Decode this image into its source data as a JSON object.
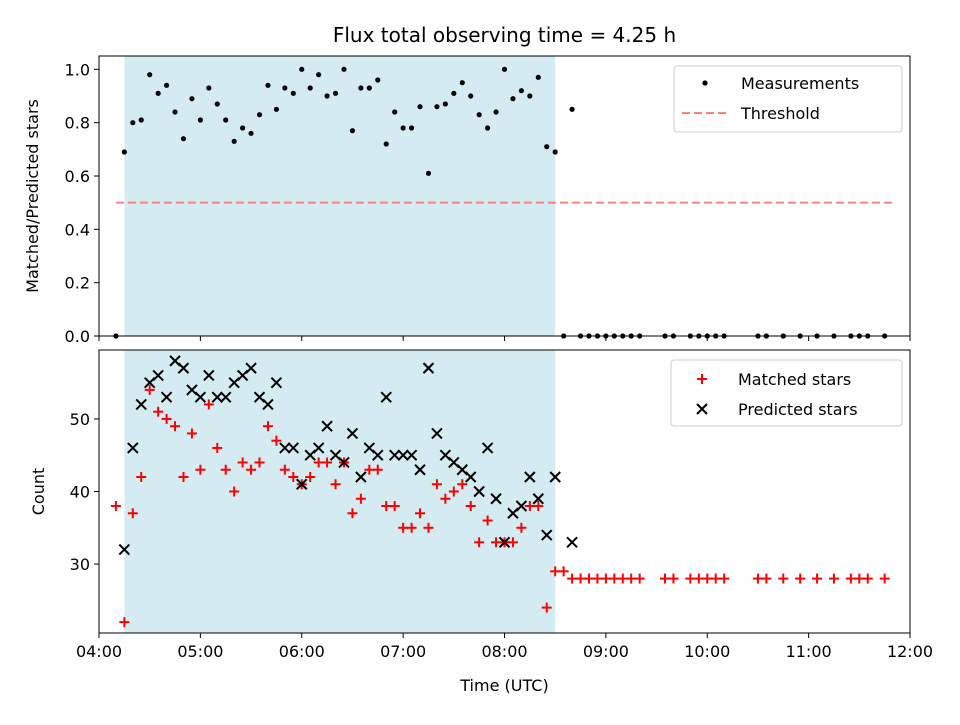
{
  "chart_data": [
    {
      "type": "scatter",
      "title": "Flux total observing time = 4.25 h",
      "xlabel": "",
      "ylabel": "Matched/Predicted stars",
      "xlim": [
        "04:00",
        "12:00"
      ],
      "ylim": [
        0,
        1.05
      ],
      "yticks": [
        "0.0",
        "0.2",
        "0.4",
        "0.6",
        "0.8",
        "1.0"
      ],
      "grid": false,
      "legend_position": "top-right",
      "shaded_span": {
        "start": "04:15",
        "end": "08:30",
        "color": "#add8e6"
      },
      "series": [
        {
          "name": "Measurements",
          "marker": "dot",
          "color": "#000000",
          "points": [
            [
              "04:10",
              0.0
            ],
            [
              "04:15",
              0.69
            ],
            [
              "04:20",
              0.8
            ],
            [
              "04:25",
              0.81
            ],
            [
              "04:30",
              0.98
            ],
            [
              "04:35",
              0.91
            ],
            [
              "04:40",
              0.94
            ],
            [
              "04:45",
              0.84
            ],
            [
              "04:50",
              0.74
            ],
            [
              "04:55",
              0.89
            ],
            [
              "05:00",
              0.81
            ],
            [
              "05:05",
              0.93
            ],
            [
              "05:10",
              0.87
            ],
            [
              "05:15",
              0.81
            ],
            [
              "05:20",
              0.73
            ],
            [
              "05:25",
              0.78
            ],
            [
              "05:30",
              0.76
            ],
            [
              "05:35",
              0.83
            ],
            [
              "05:40",
              0.94
            ],
            [
              "05:45",
              0.85
            ],
            [
              "05:50",
              0.93
            ],
            [
              "05:55",
              0.91
            ],
            [
              "06:00",
              1.0
            ],
            [
              "06:05",
              0.93
            ],
            [
              "06:10",
              0.98
            ],
            [
              "06:15",
              0.9
            ],
            [
              "06:20",
              0.91
            ],
            [
              "06:25",
              1.0
            ],
            [
              "06:30",
              0.77
            ],
            [
              "06:35",
              0.93
            ],
            [
              "06:40",
              0.93
            ],
            [
              "06:45",
              0.96
            ],
            [
              "06:50",
              0.72
            ],
            [
              "06:55",
              0.84
            ],
            [
              "07:00",
              0.78
            ],
            [
              "07:05",
              0.78
            ],
            [
              "07:10",
              0.86
            ],
            [
              "07:15",
              0.61
            ],
            [
              "07:20",
              0.86
            ],
            [
              "07:25",
              0.87
            ],
            [
              "07:30",
              0.91
            ],
            [
              "07:35",
              0.95
            ],
            [
              "07:40",
              0.9
            ],
            [
              "07:45",
              0.83
            ],
            [
              "07:50",
              0.78
            ],
            [
              "07:55",
              0.84
            ],
            [
              "08:00",
              1.0
            ],
            [
              "08:05",
              0.89
            ],
            [
              "08:10",
              0.92
            ],
            [
              "08:15",
              0.9
            ],
            [
              "08:20",
              0.97
            ],
            [
              "08:25",
              0.71
            ],
            [
              "08:30",
              0.69
            ],
            [
              "08:35",
              0.0
            ],
            [
              "08:40",
              0.85
            ],
            [
              "08:45",
              0.0
            ],
            [
              "08:50",
              0.0
            ],
            [
              "08:55",
              0.0
            ],
            [
              "09:00",
              0.0
            ],
            [
              "09:05",
              0.0
            ],
            [
              "09:10",
              0.0
            ],
            [
              "09:15",
              0.0
            ],
            [
              "09:20",
              0.0
            ],
            [
              "09:35",
              0.0
            ],
            [
              "09:40",
              0.0
            ],
            [
              "09:50",
              0.0
            ],
            [
              "09:55",
              0.0
            ],
            [
              "10:00",
              0.0
            ],
            [
              "10:05",
              0.0
            ],
            [
              "10:10",
              0.0
            ],
            [
              "10:30",
              0.0
            ],
            [
              "10:35",
              0.0
            ],
            [
              "10:45",
              0.0
            ],
            [
              "10:55",
              0.0
            ],
            [
              "11:05",
              0.0
            ],
            [
              "11:15",
              0.0
            ],
            [
              "11:25",
              0.0
            ],
            [
              "11:30",
              0.0
            ],
            [
              "11:35",
              0.0
            ],
            [
              "11:45",
              0.0
            ]
          ]
        },
        {
          "name": "Threshold",
          "marker": "dashed-line",
          "color": "#ff7f7f",
          "points": [
            [
              "04:10",
              0.5
            ],
            [
              "11:50",
              0.5
            ]
          ]
        }
      ]
    },
    {
      "type": "scatter",
      "title": "",
      "xlabel": "Time (UTC)",
      "ylabel": "Count",
      "xlim": [
        "04:00",
        "12:00"
      ],
      "xticks": [
        "04:00",
        "05:00",
        "06:00",
        "07:00",
        "08:00",
        "09:00",
        "10:00",
        "11:00",
        "12:00"
      ],
      "ylim": [
        20.5,
        59.5
      ],
      "yticks": [
        "30",
        "40",
        "50"
      ],
      "grid": false,
      "legend_position": "top-right",
      "shaded_span": {
        "start": "04:15",
        "end": "08:30",
        "color": "#add8e6"
      },
      "series": [
        {
          "name": "Matched stars",
          "marker": "plus",
          "color": "#ff0000",
          "points": [
            [
              "04:10",
              38
            ],
            [
              "04:15",
              22
            ],
            [
              "04:20",
              37
            ],
            [
              "04:25",
              42
            ],
            [
              "04:30",
              54
            ],
            [
              "04:35",
              51
            ],
            [
              "04:40",
              50
            ],
            [
              "04:45",
              49
            ],
            [
              "04:50",
              42
            ],
            [
              "04:55",
              48
            ],
            [
              "05:00",
              43
            ],
            [
              "05:05",
              52
            ],
            [
              "05:10",
              46
            ],
            [
              "05:15",
              43
            ],
            [
              "05:20",
              40
            ],
            [
              "05:25",
              44
            ],
            [
              "05:30",
              43
            ],
            [
              "05:35",
              44
            ],
            [
              "05:40",
              49
            ],
            [
              "05:45",
              47
            ],
            [
              "05:50",
              43
            ],
            [
              "05:55",
              42
            ],
            [
              "06:00",
              41
            ],
            [
              "06:05",
              42
            ],
            [
              "06:10",
              44
            ],
            [
              "06:15",
              44
            ],
            [
              "06:20",
              41
            ],
            [
              "06:25",
              44
            ],
            [
              "06:30",
              37
            ],
            [
              "06:35",
              39
            ],
            [
              "06:40",
              43
            ],
            [
              "06:45",
              43
            ],
            [
              "06:50",
              38
            ],
            [
              "06:55",
              38
            ],
            [
              "07:00",
              35
            ],
            [
              "07:05",
              35
            ],
            [
              "07:10",
              37
            ],
            [
              "07:15",
              35
            ],
            [
              "07:20",
              41
            ],
            [
              "07:25",
              39
            ],
            [
              "07:30",
              40
            ],
            [
              "07:35",
              41
            ],
            [
              "07:40",
              38
            ],
            [
              "07:45",
              33
            ],
            [
              "07:50",
              36
            ],
            [
              "07:55",
              33
            ],
            [
              "08:00",
              33
            ],
            [
              "08:05",
              33
            ],
            [
              "08:10",
              35
            ],
            [
              "08:15",
              38
            ],
            [
              "08:20",
              38
            ],
            [
              "08:25",
              24
            ],
            [
              "08:30",
              29
            ],
            [
              "08:35",
              29
            ],
            [
              "08:40",
              28
            ],
            [
              "08:45",
              28
            ],
            [
              "08:50",
              28
            ],
            [
              "08:55",
              28
            ],
            [
              "09:00",
              28
            ],
            [
              "09:05",
              28
            ],
            [
              "09:10",
              28
            ],
            [
              "09:15",
              28
            ],
            [
              "09:20",
              28
            ],
            [
              "09:35",
              28
            ],
            [
              "09:40",
              28
            ],
            [
              "09:50",
              28
            ],
            [
              "09:55",
              28
            ],
            [
              "10:00",
              28
            ],
            [
              "10:05",
              28
            ],
            [
              "10:10",
              28
            ],
            [
              "10:30",
              28
            ],
            [
              "10:35",
              28
            ],
            [
              "10:45",
              28
            ],
            [
              "10:55",
              28
            ],
            [
              "11:05",
              28
            ],
            [
              "11:15",
              28
            ],
            [
              "11:25",
              28
            ],
            [
              "11:30",
              28
            ],
            [
              "11:35",
              28
            ],
            [
              "11:45",
              28
            ]
          ]
        },
        {
          "name": "Predicted stars",
          "marker": "x",
          "color": "#000000",
          "points": [
            [
              "04:15",
              32
            ],
            [
              "04:20",
              46
            ],
            [
              "04:25",
              52
            ],
            [
              "04:30",
              55
            ],
            [
              "04:35",
              56
            ],
            [
              "04:40",
              53
            ],
            [
              "04:45",
              58
            ],
            [
              "04:50",
              57
            ],
            [
              "04:55",
              54
            ],
            [
              "05:00",
              53
            ],
            [
              "05:05",
              56
            ],
            [
              "05:10",
              53
            ],
            [
              "05:15",
              53
            ],
            [
              "05:20",
              55
            ],
            [
              "05:25",
              56
            ],
            [
              "05:30",
              57
            ],
            [
              "05:35",
              53
            ],
            [
              "05:40",
              52
            ],
            [
              "05:45",
              55
            ],
            [
              "05:50",
              46
            ],
            [
              "05:55",
              46
            ],
            [
              "06:00",
              41
            ],
            [
              "06:05",
              45
            ],
            [
              "06:10",
              46
            ],
            [
              "06:15",
              49
            ],
            [
              "06:20",
              45
            ],
            [
              "06:25",
              44
            ],
            [
              "06:30",
              48
            ],
            [
              "06:35",
              42
            ],
            [
              "06:40",
              46
            ],
            [
              "06:45",
              45
            ],
            [
              "06:50",
              53
            ],
            [
              "06:55",
              45
            ],
            [
              "07:00",
              45
            ],
            [
              "07:05",
              45
            ],
            [
              "07:10",
              43
            ],
            [
              "07:15",
              57
            ],
            [
              "07:20",
              48
            ],
            [
              "07:25",
              45
            ],
            [
              "07:30",
              44
            ],
            [
              "07:35",
              43
            ],
            [
              "07:40",
              42
            ],
            [
              "07:45",
              40
            ],
            [
              "07:50",
              46
            ],
            [
              "07:55",
              39
            ],
            [
              "08:00",
              33
            ],
            [
              "08:05",
              37
            ],
            [
              "08:10",
              38
            ],
            [
              "08:15",
              42
            ],
            [
              "08:20",
              39
            ],
            [
              "08:25",
              34
            ],
            [
              "08:30",
              42
            ],
            [
              "08:40",
              33
            ]
          ]
        }
      ]
    }
  ]
}
